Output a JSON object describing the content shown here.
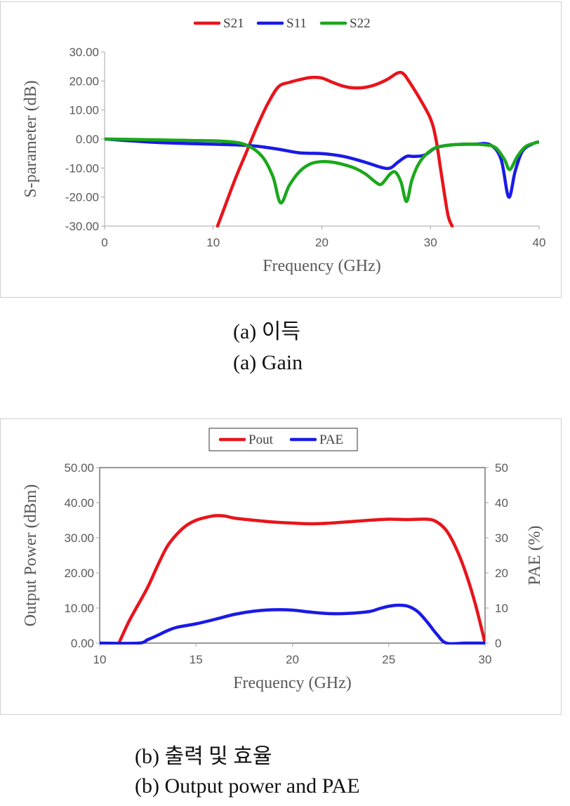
{
  "chart_data": [
    {
      "type": "line",
      "title": "",
      "xlabel": "Frequency (GHz)",
      "ylabel": "S-parameter (dB)",
      "xlim": [
        0,
        40
      ],
      "ylim": [
        -30,
        30
      ],
      "x_ticks": [
        "0",
        "10",
        "20",
        "30",
        "40"
      ],
      "y_ticks": [
        "30.00",
        "20.00",
        "10.00",
        "0.00",
        "-10.00",
        "-20.00",
        "-30.00"
      ],
      "legend_position": "top",
      "series": [
        {
          "name": "S21",
          "color": "#e8141c",
          "points": [
            [
              10.4,
              -30
            ],
            [
              11,
              -24
            ],
            [
              12,
              -14
            ],
            [
              13,
              -5
            ],
            [
              14,
              4
            ],
            [
              15,
              12
            ],
            [
              16,
              18
            ],
            [
              17,
              19.5
            ],
            [
              18,
              20.5
            ],
            [
              19,
              21.2
            ],
            [
              20,
              21
            ],
            [
              21,
              19.5
            ],
            [
              22,
              18.2
            ],
            [
              23,
              17.6
            ],
            [
              24,
              17.8
            ],
            [
              25,
              18.8
            ],
            [
              26,
              20.5
            ],
            [
              27,
              22.8
            ],
            [
              27.5,
              22.5
            ],
            [
              28,
              20
            ],
            [
              29,
              14
            ],
            [
              30,
              7
            ],
            [
              30.5,
              0
            ],
            [
              31,
              -12
            ],
            [
              31.6,
              -26
            ],
            [
              32,
              -30
            ]
          ]
        },
        {
          "name": "S11",
          "color": "#1a1ae6",
          "points": [
            [
              0,
              0
            ],
            [
              5,
              -1.2
            ],
            [
              10,
              -1.8
            ],
            [
              12,
              -2
            ],
            [
              14,
              -2.5
            ],
            [
              16,
              -3.5
            ],
            [
              18,
              -4.8
            ],
            [
              20,
              -5
            ],
            [
              22,
              -6
            ],
            [
              24,
              -8
            ],
            [
              25.5,
              -9.8
            ],
            [
              26.3,
              -10
            ],
            [
              27,
              -8
            ],
            [
              27.8,
              -6
            ],
            [
              28.5,
              -6
            ],
            [
              29.5,
              -5.5
            ],
            [
              30.5,
              -3
            ],
            [
              32,
              -2
            ],
            [
              34,
              -1.8
            ],
            [
              35.5,
              -2
            ],
            [
              36.5,
              -7
            ],
            [
              37.2,
              -20
            ],
            [
              37.8,
              -11
            ],
            [
              38.5,
              -4
            ],
            [
              39.5,
              -1.5
            ],
            [
              40,
              -1
            ]
          ]
        },
        {
          "name": "S22",
          "color": "#1aa81a",
          "points": [
            [
              0,
              0
            ],
            [
              5,
              -0.3
            ],
            [
              8,
              -0.5
            ],
            [
              11,
              -0.8
            ],
            [
              13,
              -2
            ],
            [
              14.5,
              -6
            ],
            [
              15.5,
              -13
            ],
            [
              16.2,
              -22
            ],
            [
              17,
              -16
            ],
            [
              18,
              -11
            ],
            [
              19,
              -8.5
            ],
            [
              20,
              -7.8
            ],
            [
              21,
              -8
            ],
            [
              22,
              -8.8
            ],
            [
              23,
              -10
            ],
            [
              24,
              -12
            ],
            [
              25,
              -15
            ],
            [
              25.5,
              -15.5
            ],
            [
              26.3,
              -12
            ],
            [
              26.8,
              -11.5
            ],
            [
              27.3,
              -15
            ],
            [
              27.8,
              -21.5
            ],
            [
              28.3,
              -14
            ],
            [
              29,
              -8
            ],
            [
              30,
              -4
            ],
            [
              31,
              -2.5
            ],
            [
              33,
              -1.8
            ],
            [
              35,
              -2
            ],
            [
              36,
              -3
            ],
            [
              36.8,
              -7
            ],
            [
              37.3,
              -10.5
            ],
            [
              38,
              -6
            ],
            [
              38.8,
              -2.5
            ],
            [
              40,
              -1
            ]
          ]
        }
      ]
    },
    {
      "type": "line",
      "title": "",
      "xlabel": "Frequency (GHz)",
      "ylabel": "Output Power (dBm)",
      "y2label": "PAE (%)",
      "xlim": [
        10,
        30
      ],
      "ylim": [
        0,
        50
      ],
      "y2lim": [
        0,
        50
      ],
      "x_ticks": [
        "10",
        "15",
        "20",
        "25",
        "30"
      ],
      "y_ticks": [
        "50.00",
        "40.00",
        "30.00",
        "20.00",
        "10.00",
        "0.00"
      ],
      "y2_ticks": [
        "50",
        "40",
        "30",
        "20",
        "10",
        "0"
      ],
      "legend_position": "top",
      "series": [
        {
          "name": "Pout",
          "color": "#e8141c",
          "axis": "left",
          "points": [
            [
              11,
              0
            ],
            [
              11.5,
              6
            ],
            [
              12,
              11
            ],
            [
              12.5,
              16
            ],
            [
              13,
              22
            ],
            [
              13.5,
              27.5
            ],
            [
              14,
              31
            ],
            [
              14.5,
              33.5
            ],
            [
              15,
              35
            ],
            [
              15.5,
              35.8
            ],
            [
              16,
              36.3
            ],
            [
              16.5,
              36.2
            ],
            [
              17,
              35.6
            ],
            [
              18,
              35
            ],
            [
              19,
              34.5
            ],
            [
              20,
              34.2
            ],
            [
              21,
              34
            ],
            [
              22,
              34.2
            ],
            [
              23,
              34.6
            ],
            [
              24,
              35
            ],
            [
              25,
              35.3
            ],
            [
              26,
              35.2
            ],
            [
              27,
              35.3
            ],
            [
              27.5,
              34.5
            ],
            [
              28,
              32
            ],
            [
              28.5,
              27
            ],
            [
              29,
              20
            ],
            [
              29.5,
              11
            ],
            [
              30,
              0
            ]
          ]
        },
        {
          "name": "PAE",
          "color": "#1a1ae6",
          "axis": "right",
          "points": [
            [
              10,
              0
            ],
            [
              12,
              0
            ],
            [
              12.5,
              1
            ],
            [
              13,
              2.2
            ],
            [
              13.5,
              3.5
            ],
            [
              14,
              4.5
            ],
            [
              15,
              5.5
            ],
            [
              16,
              6.8
            ],
            [
              17,
              8.2
            ],
            [
              18,
              9.1
            ],
            [
              19,
              9.5
            ],
            [
              20,
              9.4
            ],
            [
              21,
              8.8
            ],
            [
              22,
              8.4
            ],
            [
              23,
              8.5
            ],
            [
              24,
              9
            ],
            [
              24.5,
              9.8
            ],
            [
              25,
              10.5
            ],
            [
              25.5,
              10.8
            ],
            [
              26,
              10.5
            ],
            [
              26.5,
              9
            ],
            [
              27,
              6
            ],
            [
              27.5,
              2.5
            ],
            [
              28,
              0
            ],
            [
              29,
              0
            ],
            [
              30,
              0
            ]
          ]
        }
      ]
    }
  ],
  "captions": {
    "a_korean": "(a)  이득",
    "a_english": "(a)  Gain",
    "b_korean": "(b)  출력  및  효율",
    "b_english": "(b)  Output  power  and  PAE"
  }
}
